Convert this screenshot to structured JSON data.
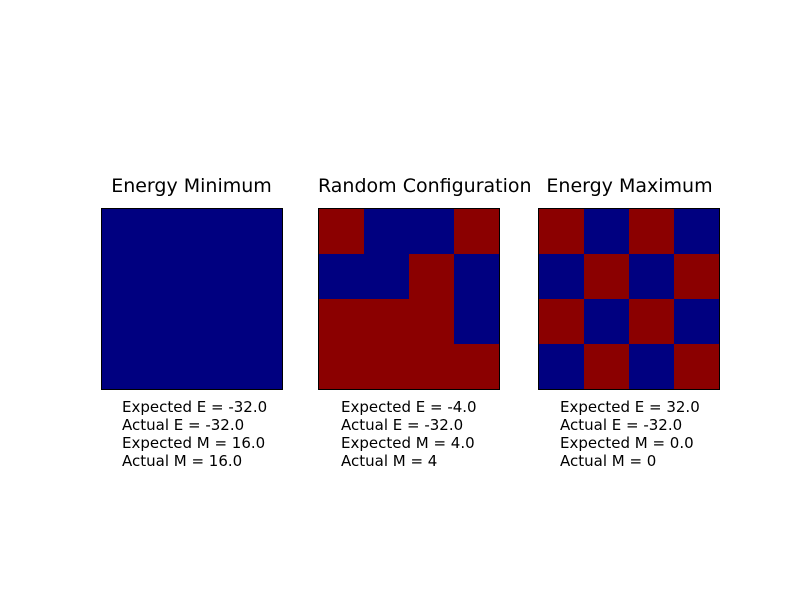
{
  "colors": {
    "blue": "#000080",
    "red": "#8B0000",
    "border": "#000000",
    "background": "#ffffff"
  },
  "panels": [
    {
      "title": "Energy Minimum",
      "grid": [
        [
          "blue",
          "blue",
          "blue",
          "blue"
        ],
        [
          "blue",
          "blue",
          "blue",
          "blue"
        ],
        [
          "blue",
          "blue",
          "blue",
          "blue"
        ],
        [
          "blue",
          "blue",
          "blue",
          "blue"
        ]
      ],
      "stats": [
        "Expected E = -32.0",
        "Actual E = -32.0",
        "Expected M = 16.0",
        "Actual M = 16.0"
      ]
    },
    {
      "title": "Random Configuration",
      "grid": [
        [
          "red",
          "blue",
          "blue",
          "red"
        ],
        [
          "blue",
          "blue",
          "red",
          "blue"
        ],
        [
          "red",
          "red",
          "red",
          "blue"
        ],
        [
          "red",
          "red",
          "red",
          "red"
        ]
      ],
      "stats": [
        "Expected E = -4.0",
        "Actual E = -32.0",
        "Expected M = 4.0",
        "Actual M = 4"
      ]
    },
    {
      "title": "Energy Maximum",
      "grid": [
        [
          "red",
          "blue",
          "red",
          "blue"
        ],
        [
          "blue",
          "red",
          "blue",
          "red"
        ],
        [
          "red",
          "blue",
          "red",
          "blue"
        ],
        [
          "blue",
          "red",
          "blue",
          "red"
        ]
      ],
      "stats": [
        "Expected E = 32.0",
        "Actual E = -32.0",
        "Expected M = 0.0",
        "Actual M = 0"
      ]
    }
  ],
  "chart_data": [
    {
      "type": "heatmap",
      "title": "Energy Minimum",
      "values": [
        [
          -1,
          -1,
          -1,
          -1
        ],
        [
          -1,
          -1,
          -1,
          -1
        ],
        [
          -1,
          -1,
          -1,
          -1
        ],
        [
          -1,
          -1,
          -1,
          -1
        ]
      ],
      "value_colors": {
        "1": "#8B0000",
        "-1": "#000080"
      },
      "grid_shape": [
        4,
        4
      ],
      "axes": "off",
      "annotations": [
        "Expected E = -32.0",
        "Actual E = -32.0",
        "Expected M = 16.0",
        "Actual M = 16.0"
      ]
    },
    {
      "type": "heatmap",
      "title": "Random Configuration",
      "values": [
        [
          1,
          -1,
          -1,
          1
        ],
        [
          -1,
          -1,
          1,
          -1
        ],
        [
          1,
          1,
          1,
          -1
        ],
        [
          1,
          1,
          1,
          1
        ]
      ],
      "value_colors": {
        "1": "#8B0000",
        "-1": "#000080"
      },
      "grid_shape": [
        4,
        4
      ],
      "axes": "off",
      "annotations": [
        "Expected E = -4.0",
        "Actual E = -32.0",
        "Expected M = 4.0",
        "Actual M = 4"
      ]
    },
    {
      "type": "heatmap",
      "title": "Energy Maximum",
      "values": [
        [
          1,
          -1,
          1,
          -1
        ],
        [
          -1,
          1,
          -1,
          1
        ],
        [
          1,
          -1,
          1,
          -1
        ],
        [
          -1,
          1,
          -1,
          1
        ]
      ],
      "value_colors": {
        "1": "#8B0000",
        "-1": "#000080"
      },
      "grid_shape": [
        4,
        4
      ],
      "axes": "off",
      "annotations": [
        "Expected E = 32.0",
        "Actual E = -32.0",
        "Expected M = 0.0",
        "Actual M = 0"
      ]
    }
  ]
}
